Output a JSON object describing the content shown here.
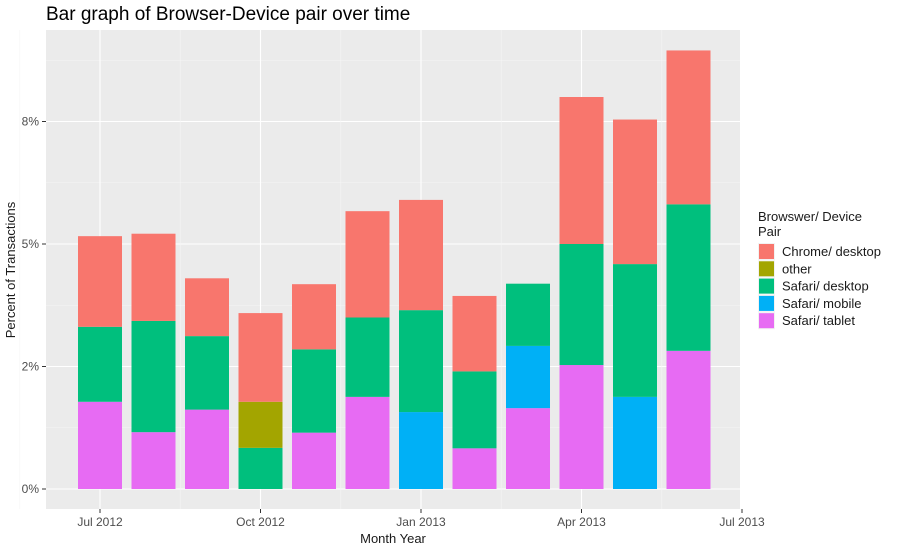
{
  "chart_data": {
    "type": "bar",
    "stacked": true,
    "title": "Bar graph of Browser-Device pair over time",
    "xlabel": "Month Year",
    "ylabel": "Percent of Transactions",
    "x_ticks": [
      "Jul 2012",
      "Oct 2012",
      "Jan 2013",
      "Apr 2013",
      "Jul 2013"
    ],
    "y_ticks": [
      "0%",
      "2%",
      "5%",
      "8%"
    ],
    "ylim_percent": [
      0,
      9.6
    ],
    "y_tick_values_percent": [
      0,
      2.5,
      5,
      7.5
    ],
    "grid": true,
    "legend_position": "right",
    "legend_title_lines": [
      "Browswer/ Device",
      " Pair"
    ],
    "months": [
      "2012-07",
      "2012-08",
      "2012-09",
      "2012-10",
      "2012-11",
      "2012-12",
      "2013-01",
      "2013-02",
      "2013-03",
      "2013-04",
      "2013-05",
      "2013-06"
    ],
    "series": [
      {
        "name": "Safari/ tablet",
        "color": "#E76BF3",
        "values": [
          1.78,
          1.16,
          1.62,
          0,
          1.15,
          1.88,
          0,
          0.83,
          1.65,
          2.53,
          0,
          2.82
        ]
      },
      {
        "name": "Safari/ mobile",
        "color": "#00B0F6",
        "values": [
          0,
          0,
          0,
          0,
          0,
          0,
          1.57,
          0,
          1.27,
          0,
          1.88,
          0
        ]
      },
      {
        "name": "Safari/ desktop",
        "color": "#00BF7D",
        "values": [
          1.53,
          2.27,
          1.5,
          0.84,
          1.7,
          1.62,
          2.08,
          1.57,
          1.27,
          2.47,
          2.71,
          2.99
        ]
      },
      {
        "name": "other",
        "color": "#A3A500",
        "values": [
          0,
          0,
          0,
          0.94,
          0,
          0,
          0,
          0,
          0,
          0,
          0,
          0
        ]
      },
      {
        "name": "Chrome/ desktop",
        "color": "#F8766D",
        "values": [
          1.85,
          1.78,
          1.18,
          1.81,
          1.33,
          2.17,
          2.25,
          1.54,
          0,
          3.0,
          2.95,
          3.14
        ]
      }
    ],
    "legend_order": [
      "Chrome/ desktop",
      "other",
      "Safari/ desktop",
      "Safari/ mobile",
      "Safari/ tablet"
    ]
  }
}
